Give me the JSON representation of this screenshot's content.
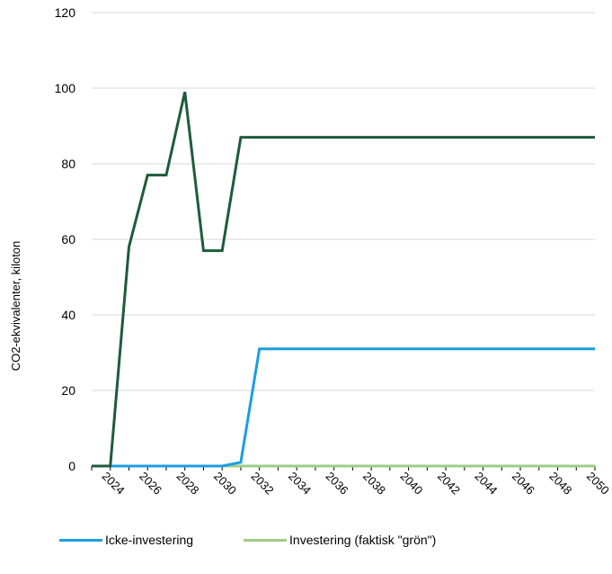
{
  "chart_data": {
    "type": "line",
    "title": "",
    "xlabel": "",
    "ylabel": "CO2-ekvivalenter, kiloton",
    "ylim": [
      0,
      120
    ],
    "yticks": [
      "0",
      "20",
      "40",
      "60",
      "80",
      "100",
      "120"
    ],
    "x": [
      2023,
      2024,
      2025,
      2026,
      2027,
      2028,
      2029,
      2030,
      2031,
      2032,
      2033,
      2034,
      2035,
      2036,
      2037,
      2038,
      2039,
      2040,
      2041,
      2042,
      2043,
      2044,
      2045,
      2046,
      2047,
      2048,
      2049,
      2050
    ],
    "xticks": [
      "2024",
      "2026",
      "2028",
      "2030",
      "2032",
      "2034",
      "2036",
      "2038",
      "2040",
      "2042",
      "2044",
      "2046",
      "2048",
      "2050"
    ],
    "grid": true,
    "legend_position": "bottom",
    "series": [
      {
        "name": "Icke-investering",
        "color": "#1b9ee0",
        "values": [
          0,
          0,
          0,
          0,
          0,
          0,
          0,
          0,
          1,
          31,
          31,
          31,
          31,
          31,
          31,
          31,
          31,
          31,
          31,
          31,
          31,
          31,
          31,
          31,
          31,
          31,
          31,
          31
        ]
      },
      {
        "name": "Investering (faktisk \"grön\")",
        "color": "#9ccc86",
        "values": [
          0,
          0,
          0,
          0,
          0,
          0,
          0,
          0,
          0,
          0,
          0,
          0,
          0,
          0,
          0,
          0,
          0,
          0,
          0,
          0,
          0,
          0,
          0,
          0,
          0,
          0,
          0,
          0
        ]
      },
      {
        "name": "",
        "color": "#1e5b3a",
        "values": [
          0,
          0,
          58,
          77,
          77,
          99,
          57,
          57,
          87,
          87,
          87,
          87,
          87,
          87,
          87,
          87,
          87,
          87,
          87,
          87,
          87,
          87,
          87,
          87,
          87,
          87,
          87,
          87
        ]
      }
    ]
  },
  "colors": {
    "grid": "#d9d9d9",
    "axis": "#000000"
  }
}
